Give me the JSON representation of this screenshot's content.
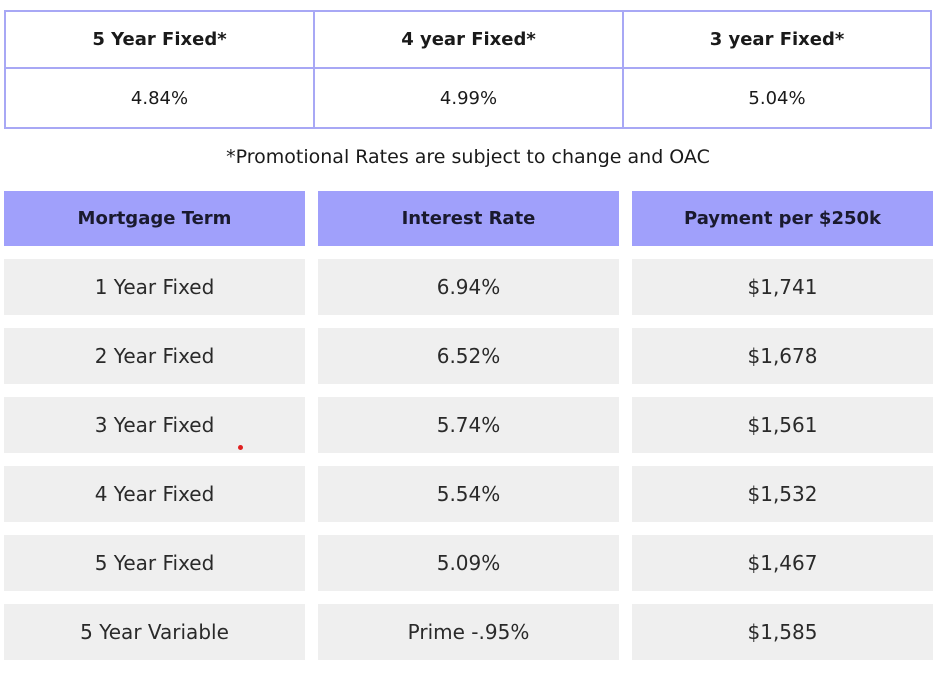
{
  "promo": {
    "headers": [
      "5 Year Fixed*",
      "4 year Fixed*",
      "3 year Fixed*"
    ],
    "values": [
      "4.84%",
      "4.99%",
      "5.04%"
    ],
    "border_color": "#a8a8f5"
  },
  "disclaimer": "*Promotional Rates are subject to change and OAC",
  "rates": {
    "headers": [
      "Mortgage Term",
      "Interest Rate",
      "Payment per $250k"
    ],
    "rows": [
      [
        "1 Year Fixed",
        "6.94%",
        "$1,741"
      ],
      [
        "2 Year Fixed",
        "6.52%",
        "$1,678"
      ],
      [
        "3 Year Fixed",
        "5.74%",
        "$1,561"
      ],
      [
        "4 Year Fixed",
        "5.54%",
        "$1,532"
      ],
      [
        "5 Year Fixed",
        "5.09%",
        "$1,467"
      ],
      [
        "5 Year Variable",
        "Prime -.95%",
        "$1,585"
      ]
    ],
    "header_color": "#a0a0fb",
    "cell_color": "#efefef"
  }
}
